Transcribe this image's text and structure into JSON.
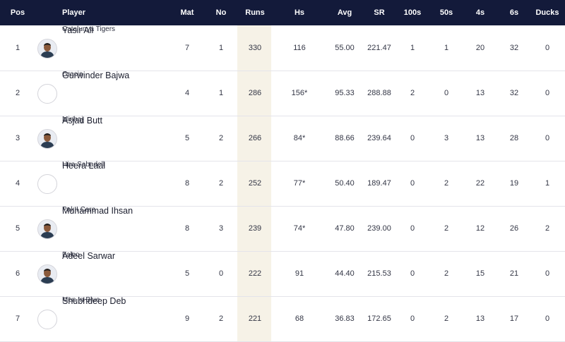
{
  "headers": {
    "pos": "Pos",
    "player": "Player",
    "mat": "Mat",
    "no": "No",
    "runs": "Runs",
    "hs": "Hs",
    "avg": "Avg",
    "sr": "SR",
    "h100": "100s",
    "h50": "50s",
    "fours": "4s",
    "sixes": "6s",
    "ducks": "Ducks"
  },
  "rows": [
    {
      "pos": "1",
      "name": "Yasir Ali",
      "team": "Catalunya Tigers",
      "avatar": "player-photo",
      "mat": "7",
      "no": "1",
      "runs": "330",
      "hs": "116",
      "avg": "55.00",
      "sr": "221.47",
      "h100": "1",
      "h50": "1",
      "fours": "20",
      "sixes": "32",
      "ducks": "0"
    },
    {
      "pos": "2",
      "name": "Gurwinder Bajwa",
      "team": "Gracia",
      "avatar": "blank",
      "mat": "4",
      "no": "1",
      "runs": "286",
      "hs": "156*",
      "avg": "95.33",
      "sr": "288.88",
      "h100": "2",
      "h50": "0",
      "fours": "13",
      "sixes": "32",
      "ducks": "0"
    },
    {
      "pos": "3",
      "name": "Asjad Butt",
      "team": "Minhaj",
      "avatar": "player-photo",
      "mat": "5",
      "no": "2",
      "runs": "266",
      "hs": "84*",
      "avg": "88.66",
      "sr": "239.64",
      "h100": "0",
      "h50": "3",
      "fours": "13",
      "sixes": "28",
      "ducks": "0"
    },
    {
      "pos": "4",
      "name": "Heera Laal",
      "team": "Hira Sabadell",
      "avatar": "blank",
      "mat": "8",
      "no": "2",
      "runs": "252",
      "hs": "77*",
      "avg": "50.40",
      "sr": "189.47",
      "h100": "0",
      "h50": "2",
      "fours": "22",
      "sixes": "19",
      "ducks": "1"
    },
    {
      "pos": "5",
      "name": "Muhammad Ihsan",
      "team": "Pak I Care",
      "avatar": "player-photo",
      "mat": "8",
      "no": "3",
      "runs": "239",
      "hs": "74*",
      "avg": "47.80",
      "sr": "239.00",
      "h100": "0",
      "h50": "2",
      "fours": "12",
      "sixes": "26",
      "ducks": "2"
    },
    {
      "pos": "6",
      "name": "Adeel Sarwar",
      "team": "Falco",
      "avatar": "player-photo",
      "mat": "5",
      "no": "0",
      "runs": "222",
      "hs": "91",
      "avg": "44.40",
      "sr": "215.53",
      "h100": "0",
      "h50": "2",
      "fours": "15",
      "sixes": "21",
      "ducks": "0"
    },
    {
      "pos": "7",
      "name": "Shubhdeep Deb",
      "team": "Men In Blue",
      "avatar": "blank",
      "mat": "9",
      "no": "2",
      "runs": "221",
      "hs": "68",
      "avg": "36.83",
      "sr": "172.65",
      "h100": "0",
      "h50": "2",
      "fours": "13",
      "sixes": "17",
      "ducks": "0"
    }
  ],
  "colors": {
    "header_bg": "#131a3a",
    "runs_highlight": "#f6f2e7"
  }
}
